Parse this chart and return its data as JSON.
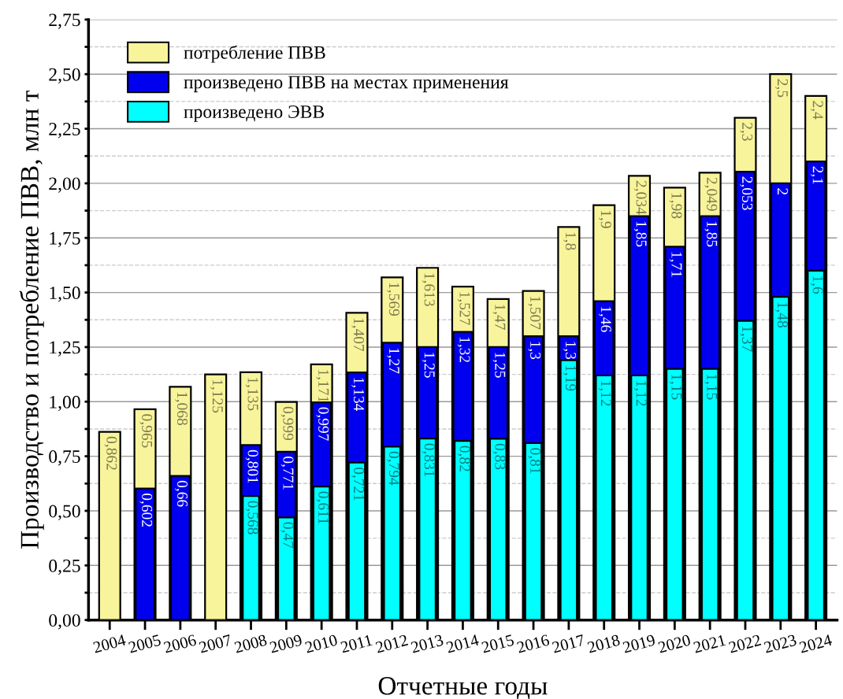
{
  "chart_data": {
    "type": "bar",
    "xlabel": "Отчетные годы",
    "ylabel": "Производство и потребление ПВВ, млн т",
    "categories": [
      "2004",
      "2005",
      "2006",
      "2007",
      "2008",
      "2009",
      "2010",
      "2011",
      "2012",
      "2013",
      "2014",
      "2015",
      "2016",
      "2017",
      "2018",
      "2019",
      "2020",
      "2021",
      "2022",
      "2023",
      "2024"
    ],
    "series": [
      {
        "name": "потребление ПВВ",
        "color": "#f8f49c",
        "values": [
          0.862,
          0.965,
          1.068,
          1.125,
          1.135,
          0.999,
          1.171,
          1.407,
          1.569,
          1.613,
          1.527,
          1.47,
          1.507,
          1.8,
          1.9,
          2.034,
          1.98,
          2.049,
          2.3,
          2.5,
          2.4
        ],
        "value_labels": [
          "0,862",
          "0,965",
          "1,068",
          "1,125",
          "1,135",
          "0,999",
          "1,171",
          "1,407",
          "1,569",
          "1,613",
          "1,527",
          "1,47",
          "1,507",
          "1,8",
          "1,9",
          "2,034",
          "1,98",
          "2,049",
          "2,3",
          "2,5",
          "2,4"
        ]
      },
      {
        "name": "произведено ПВВ на местах применения",
        "color": "#0000ee",
        "values": [
          null,
          0.602,
          0.66,
          null,
          0.801,
          0.771,
          0.997,
          1.134,
          1.27,
          1.25,
          1.32,
          1.25,
          1.3,
          1.3,
          1.46,
          1.85,
          1.71,
          1.85,
          2.053,
          2,
          2.1
        ],
        "value_labels": [
          null,
          "0,602",
          "0,66",
          null,
          "0,801",
          "0,771",
          "0,997",
          "1,134",
          "1,27",
          "1,25",
          "1,32",
          "1,25",
          "1,3",
          "1,3",
          "1,46",
          "1,85",
          "1,71",
          "1,85",
          "2,053",
          "2",
          "2,1"
        ]
      },
      {
        "name": "произведено ЭВВ",
        "color": "#00ffff",
        "values": [
          null,
          null,
          null,
          null,
          0.568,
          0.47,
          0.611,
          0.721,
          0.794,
          0.831,
          0.82,
          0.83,
          0.81,
          1.19,
          1.12,
          1.12,
          1.15,
          1.15,
          1.37,
          1.48,
          1.6
        ],
        "value_labels": [
          null,
          null,
          null,
          null,
          "0,568",
          "0,47",
          "0,611",
          "0,721",
          "0,794",
          "0,831",
          "0,82",
          "0,83",
          "0,81",
          "1,19",
          "1,12",
          "1,12",
          "1,15",
          "1,15",
          "1,37",
          "1,48",
          "1,6"
        ]
      }
    ],
    "ylim": [
      0,
      2.75
    ],
    "yticks": [
      {
        "value": 0,
        "label": "0,00"
      },
      {
        "value": 0.125,
        "label": null
      },
      {
        "value": 0.25,
        "label": "0,25"
      },
      {
        "value": 0.375,
        "label": null
      },
      {
        "value": 0.5,
        "label": "0,50"
      },
      {
        "value": 0.625,
        "label": null
      },
      {
        "value": 0.75,
        "label": "0,75"
      },
      {
        "value": 0.875,
        "label": null
      },
      {
        "value": 1.0,
        "label": "1,00"
      },
      {
        "value": 1.125,
        "label": null
      },
      {
        "value": 1.25,
        "label": "1,25"
      },
      {
        "value": 1.375,
        "label": null
      },
      {
        "value": 1.5,
        "label": "1,50"
      },
      {
        "value": 1.625,
        "label": null
      },
      {
        "value": 1.75,
        "label": "1,75"
      },
      {
        "value": 1.875,
        "label": null
      },
      {
        "value": 2.0,
        "label": "2,00"
      },
      {
        "value": 2.125,
        "label": null
      },
      {
        "value": 2.25,
        "label": "2,25"
      },
      {
        "value": 2.375,
        "label": null
      },
      {
        "value": 2.5,
        "label": "2,50"
      },
      {
        "value": 2.625,
        "label": null
      },
      {
        "value": 2.75,
        "label": "2,75"
      }
    ],
    "grid": "y",
    "legend": "top left"
  }
}
